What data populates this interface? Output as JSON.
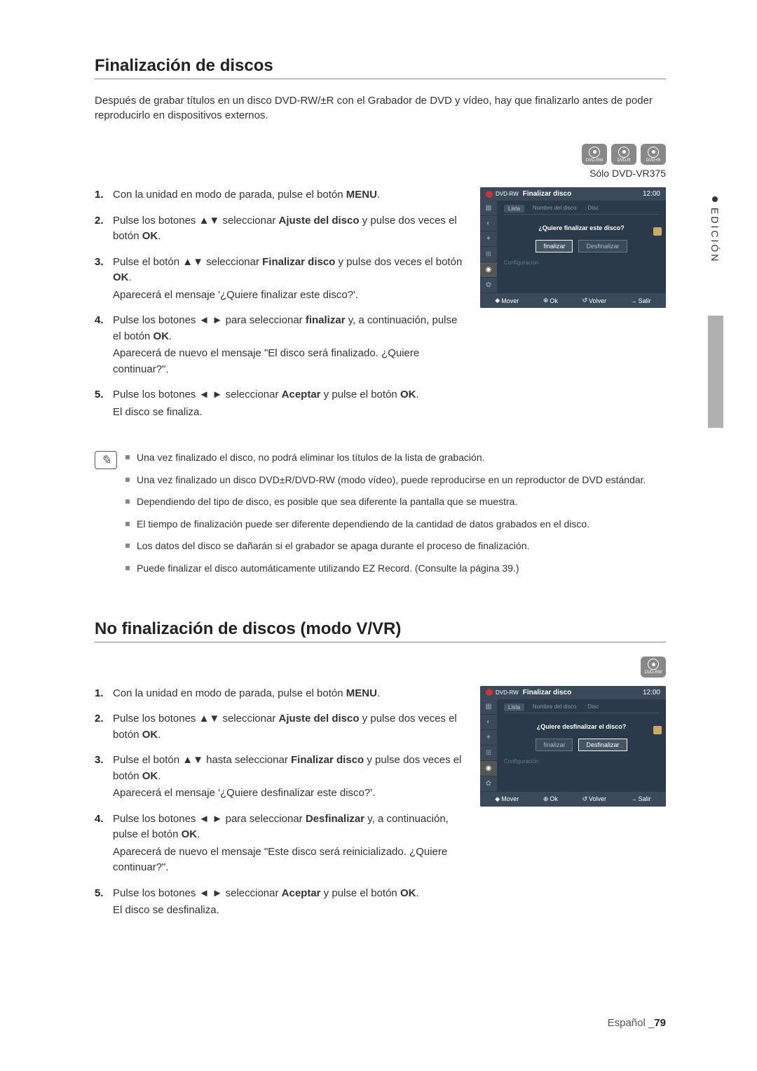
{
  "section1": {
    "title": "Finalización de discos",
    "intro": "Después de grabar títulos en un disco DVD-RW/±R con el Grabador de DVD y vídeo, hay que finalizarlo antes de poder reproducirlo en dispositivos externos.",
    "badges": [
      "DVD-RW",
      "DVD-R",
      "DVD+R"
    ],
    "solo_note": "Sólo DVD-VR375",
    "steps": [
      {
        "pre": "Con la unidad en modo de parada, pulse el botón ",
        "bold1": "MENU",
        "post1": "."
      },
      {
        "pre": "Pulse los botones ▲▼ seleccionar ",
        "bold1": "Ajuste del disco",
        "post1": " y pulse dos veces el botón ",
        "bold2": "OK",
        "post2": "."
      },
      {
        "pre": "Pulse el botón ▲▼ seleccionar ",
        "bold1": "Finalizar disco",
        "post1": " y pulse dos veces el botón ",
        "bold2": "OK",
        "post2": ".",
        "sub": "Aparecerá el mensaje '¿Quiere finalizar este disco?'."
      },
      {
        "pre": "Pulse los botones ◄ ► para seleccionar ",
        "bold1": "finalizar",
        "post1": " y, a continuación, pulse el botón ",
        "bold2": "OK",
        "post2": ".",
        "sub": "Aparecerá de nuevo el mensaje \"El disco será finalizado. ¿Quiere continuar?\"."
      },
      {
        "pre": "Pulse los botones ◄ ► seleccionar ",
        "bold1": "Aceptar",
        "post1": " y pulse el botón ",
        "bold2": "OK",
        "post2": ".",
        "sub": "El disco se finaliza."
      }
    ],
    "osd": {
      "dvd_tag": "DVD-RW",
      "title": "Finalizar disco",
      "time": "12:00",
      "lista": "Lista",
      "row_label": "Nombre del disco",
      "row_value": ": Disc",
      "question": "¿Quiere finalizar este disco?",
      "btn_active": "finalizar",
      "btn_inactive": "Desfinalizar",
      "config": "Configuración",
      "footer": {
        "mover": "Mover",
        "ok": "Ok",
        "volver": "Volver",
        "salir": "Salir"
      }
    }
  },
  "notes": [
    "Una vez finalizado el disco, no podrá eliminar los títulos de la lista de grabación.",
    "Una vez finalizado un disco DVD±R/DVD-RW (modo vídeo), puede reproducirse en un reproductor de DVD estándar.",
    "Dependiendo del tipo de disco, es posible que sea diferente la pantalla que se muestra.",
    "El tiempo de finalización puede ser diferente dependiendo de la cantidad de datos grabados en el disco.",
    "Los datos del disco se dañarán si el grabador se apaga durante el proceso de finalización.",
    "Puede finalizar el disco automáticamente utilizando EZ Record. (Consulte la página 39.)"
  ],
  "section2": {
    "title": "No finalización de discos (modo V/VR)",
    "badges": [
      "DVD-RW"
    ],
    "steps": [
      {
        "pre": "Con la unidad en modo de parada, pulse el botón ",
        "bold1": "MENU",
        "post1": "."
      },
      {
        "pre": "Pulse los botones ▲▼ seleccionar ",
        "bold1": "Ajuste del disco",
        "post1": " y pulse dos veces el botón ",
        "bold2": "OK",
        "post2": "."
      },
      {
        "pre": "Pulse el botón ▲▼ hasta seleccionar ",
        "bold1": "Finalizar disco",
        "post1": " y pulse dos veces el botón ",
        "bold2": "OK",
        "post2": ".",
        "sub": "Aparecerá el mensaje '¿Quiere desfinalizar este disco?'."
      },
      {
        "pre": "Pulse los botones ◄ ► para seleccionar ",
        "bold1": "Desfinalizar",
        "post1": " y, a continuación, pulse el botón ",
        "bold2": "OK",
        "post2": ".",
        "sub": "Aparecerá de nuevo el mensaje \"Este disco será reinicializado. ¿Quiere continuar?\"."
      },
      {
        "pre": "Pulse los botones ◄ ► seleccionar ",
        "bold1": "Aceptar",
        "post1": " y pulse el botón ",
        "bold2": "OK",
        "post2": ".",
        "sub": "El disco se desfinaliza."
      }
    ],
    "osd": {
      "dvd_tag": "DVD-RW",
      "title": "Finalizar disco",
      "time": "12:00",
      "lista": "Lista",
      "row_label": "Nombre del disco",
      "row_value": ": Disc",
      "question": "¿Quiere desfinalizar el disco?",
      "btn_inactive": "finalizar",
      "btn_active": "Desfinalizar",
      "config": "Configuración",
      "footer": {
        "mover": "Mover",
        "ok": "Ok",
        "volver": "Volver",
        "salir": "Salir"
      }
    }
  },
  "side_tab": "EDICIÓN",
  "footer_lang": "Español _",
  "footer_page": "79",
  "colors": {
    "osd_bg": "#2a3a4a",
    "osd_header": "#3a4a5a",
    "badge_bg": "#888888",
    "side_bar": "#b0b0b0"
  }
}
